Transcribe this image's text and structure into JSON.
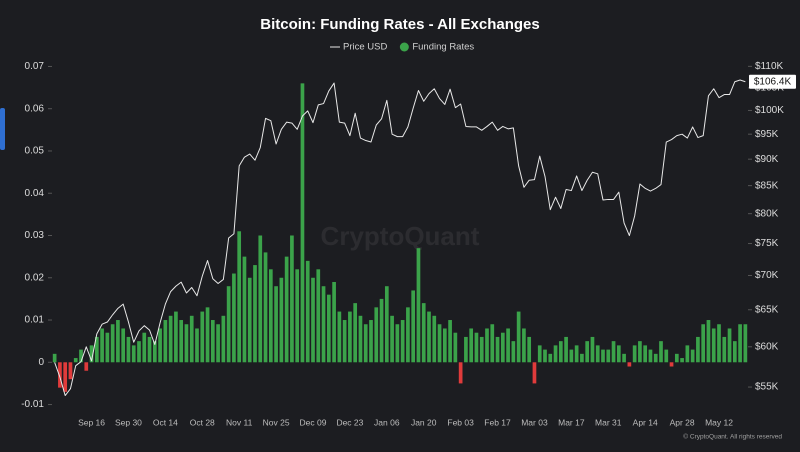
{
  "chart_data": {
    "type": "combo",
    "title": "Bitcoin: Funding Rates - All Exchanges",
    "watermark": "CryptoQuant",
    "footer": "© CryptoQuant. All rights reserved",
    "categories": [
      null,
      null,
      null,
      null,
      null,
      null,
      null,
      "Sep 16",
      null,
      null,
      null,
      null,
      null,
      null,
      "Sep 30",
      null,
      null,
      null,
      null,
      null,
      null,
      "Oct 14",
      null,
      null,
      null,
      null,
      null,
      null,
      "Oct 28",
      null,
      null,
      null,
      null,
      null,
      null,
      "Nov 11",
      null,
      null,
      null,
      null,
      null,
      null,
      "Nov 25",
      null,
      null,
      null,
      null,
      null,
      null,
      "Dec 09",
      null,
      null,
      null,
      null,
      null,
      null,
      "Dec 23",
      null,
      null,
      null,
      null,
      null,
      null,
      "Jan 06",
      null,
      null,
      null,
      null,
      null,
      null,
      "Jan 20",
      null,
      null,
      null,
      null,
      null,
      null,
      "Feb 03",
      null,
      null,
      null,
      null,
      null,
      null,
      "Feb 17",
      null,
      null,
      null,
      null,
      null,
      null,
      "Mar 03",
      null,
      null,
      null,
      null,
      null,
      null,
      "Mar 17",
      null,
      null,
      null,
      null,
      null,
      null,
      "Mar 31",
      null,
      null,
      null,
      null,
      null,
      null,
      "Apr 14",
      null,
      null,
      null,
      null,
      null,
      null,
      "Apr 28",
      null,
      null,
      null,
      null,
      null,
      null,
      "May 12",
      null,
      null,
      null,
      null,
      null
    ],
    "series": [
      {
        "name": "Price USD",
        "type": "line",
        "axis": "y2",
        "color": "#e8e8e8",
        "values": [
          58000,
          56200,
          54000,
          54800,
          57600,
          58100,
          60000,
          58200,
          61700,
          63000,
          63300,
          64300,
          65200,
          65800,
          63300,
          60600,
          62100,
          62800,
          62200,
          60300,
          63200,
          65800,
          67600,
          68400,
          69000,
          67400,
          68200,
          67000,
          69900,
          72300,
          69500,
          68800,
          69400,
          75900,
          76600,
          88700,
          90400,
          91000,
          89800,
          92300,
          98300,
          97800,
          93000,
          96000,
          97500,
          97300,
          96000,
          98800,
          99900,
          97400,
          101200,
          101500,
          104300,
          106100,
          97500,
          97300,
          94700,
          99400,
          94200,
          93700,
          93400,
          96900,
          98200,
          102200,
          95000,
          94500,
          94500,
          96500,
          100500,
          104400,
          102000,
          103700,
          104800,
          102600,
          101300,
          104700,
          100600,
          101400,
          96600,
          96500,
          96500,
          95800,
          96600,
          97500,
          95800,
          96600,
          96100,
          96300,
          88700,
          84700,
          86000,
          86100,
          90600,
          86700,
          80700,
          82900,
          80900,
          84300,
          84100,
          86800,
          84100,
          86000,
          87500,
          87200,
          82400,
          82500,
          82500,
          83800,
          78400,
          76300,
          79600,
          85300,
          84500,
          84000,
          84500,
          85200,
          93400,
          93900,
          94700,
          95000,
          94200,
          96500,
          94300,
          94700,
          103200,
          104800,
          102800,
          103500,
          103500,
          106400,
          106800,
          106400
        ]
      },
      {
        "name": "Funding Rates",
        "type": "bar",
        "axis": "y",
        "color": "#3ba34a",
        "negative_color": "#e03b3b",
        "values": [
          0.002,
          -0.006,
          -0.007,
          -0.004,
          0.001,
          0.003,
          -0.002,
          0.004,
          0.006,
          0.008,
          0.007,
          0.009,
          0.01,
          0.008,
          0.006,
          0.004,
          0.005,
          0.007,
          0.006,
          0.005,
          0.008,
          0.01,
          0.011,
          0.012,
          0.01,
          0.009,
          0.011,
          0.008,
          0.012,
          0.013,
          0.01,
          0.009,
          0.011,
          0.018,
          0.021,
          0.031,
          0.025,
          0.02,
          0.023,
          0.03,
          0.026,
          0.022,
          0.018,
          0.02,
          0.025,
          0.03,
          0.022,
          0.066,
          0.024,
          0.02,
          0.022,
          0.018,
          0.016,
          0.019,
          0.012,
          0.01,
          0.012,
          0.014,
          0.011,
          0.009,
          0.01,
          0.013,
          0.015,
          0.018,
          0.011,
          0.009,
          0.01,
          0.013,
          0.017,
          0.027,
          0.014,
          0.012,
          0.011,
          0.009,
          0.008,
          0.01,
          0.007,
          -0.005,
          0.006,
          0.008,
          0.007,
          0.006,
          0.008,
          0.009,
          0.006,
          0.007,
          0.008,
          0.005,
          0.012,
          0.008,
          0.006,
          -0.005,
          0.004,
          0.003,
          0.002,
          0.004,
          0.005,
          0.006,
          0.003,
          0.004,
          0.002,
          0.005,
          0.006,
          0.004,
          0.003,
          0.003,
          0.005,
          0.004,
          0.002,
          -0.001,
          0.004,
          0.005,
          0.004,
          0.003,
          0.002,
          0.005,
          0.003,
          -0.001,
          0.002,
          0.001,
          0.004,
          0.003,
          0.006,
          0.009,
          0.01,
          0.008,
          0.009,
          0.006,
          0.008,
          0.005,
          0.009,
          0.009
        ]
      }
    ],
    "ylim": [
      -0.012,
      0.072
    ],
    "yticks": [
      -0.01,
      0,
      0.01,
      0.02,
      0.03,
      0.04,
      0.05,
      0.06,
      0.07
    ],
    "y2lim": [
      52000,
      112000
    ],
    "y2_log": true,
    "y2ticks": [
      {
        "value": 55000,
        "label": "$55K"
      },
      {
        "value": 60000,
        "label": "$60K"
      },
      {
        "value": 65000,
        "label": "$65K"
      },
      {
        "value": 70000,
        "label": "$70K"
      },
      {
        "value": 75000,
        "label": "$75K"
      },
      {
        "value": 80000,
        "label": "$80K"
      },
      {
        "value": 85000,
        "label": "$85K"
      },
      {
        "value": 90000,
        "label": "$90K"
      },
      {
        "value": 95000,
        "label": "$95K"
      },
      {
        "value": 100000,
        "label": "$100K"
      },
      {
        "value": 105000,
        "label": "$105K"
      },
      {
        "value": 110000,
        "label": "$110K"
      }
    ],
    "price_tag": {
      "value": 106400,
      "label": "$106.4K"
    },
    "grid": false
  }
}
